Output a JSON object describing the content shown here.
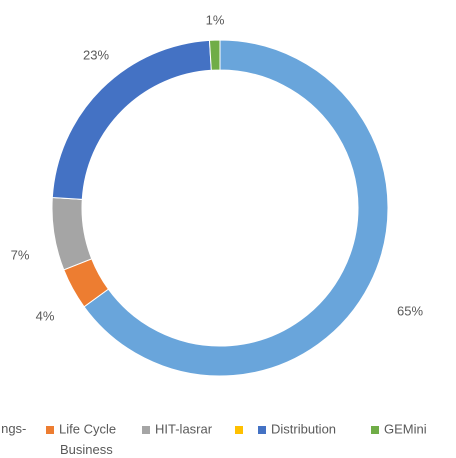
{
  "chart_data": {
    "type": "pie",
    "categories": [
      "ngs- Business",
      "Life Cycle",
      "HIT-lasrar",
      null,
      "Distribution",
      "GEMini"
    ],
    "values": [
      65,
      4,
      7,
      0,
      23,
      1
    ],
    "value_labels": [
      "65%",
      "4%",
      "7%",
      null,
      "23%",
      "1%"
    ],
    "colors": [
      "#69a5db",
      "#ed7d31",
      "#a5a5a5",
      "#ffc000",
      "#4472c4",
      "#70ad47"
    ],
    "donut": true,
    "legend": "bottom"
  }
}
